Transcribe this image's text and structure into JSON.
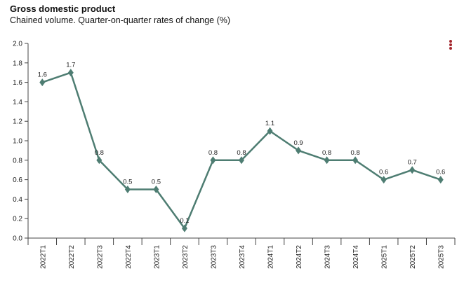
{
  "menu_icon": "vertical-dots-menu-icon",
  "colors": {
    "series": "#4e7d72",
    "menu": "#a3242b",
    "axis": "#444444",
    "text": "#222222"
  },
  "chart_data": {
    "type": "line",
    "title": "Gross domestic product",
    "subtitle": "Chained volume. Quarter-on-quarter rates of change (%)",
    "xlabel": "",
    "ylabel": "",
    "categories": [
      "2022T1",
      "2022T2",
      "2022T3",
      "2022T4",
      "2023T1",
      "2023T2",
      "2023T3",
      "2023T4",
      "2024T1",
      "2024T2",
      "2024T3",
      "2024T4",
      "2025T1",
      "2025T2",
      "2025T3"
    ],
    "series": [
      {
        "values": [
          1.6,
          1.7,
          0.8,
          0.5,
          0.5,
          0.1,
          0.8,
          0.8,
          1.1,
          0.9,
          0.8,
          0.8,
          0.6,
          0.7,
          0.6
        ],
        "labels": [
          "1.6",
          "1.7",
          "0.8",
          "0.5",
          "0.5",
          "0.1",
          "0.8",
          "0.8",
          "1.1",
          "0.9",
          "0.8",
          "0.8",
          "0.6",
          "0.7",
          "0.6"
        ],
        "marker": "diamond"
      }
    ],
    "ylim": [
      0,
      2.0
    ],
    "yticks": [
      "0.0",
      "0.2",
      "0.4",
      "0.6",
      "0.8",
      "1.0",
      "1.2",
      "1.4",
      "1.6",
      "1.8",
      "2.0"
    ],
    "grid": false,
    "legend": "none"
  }
}
